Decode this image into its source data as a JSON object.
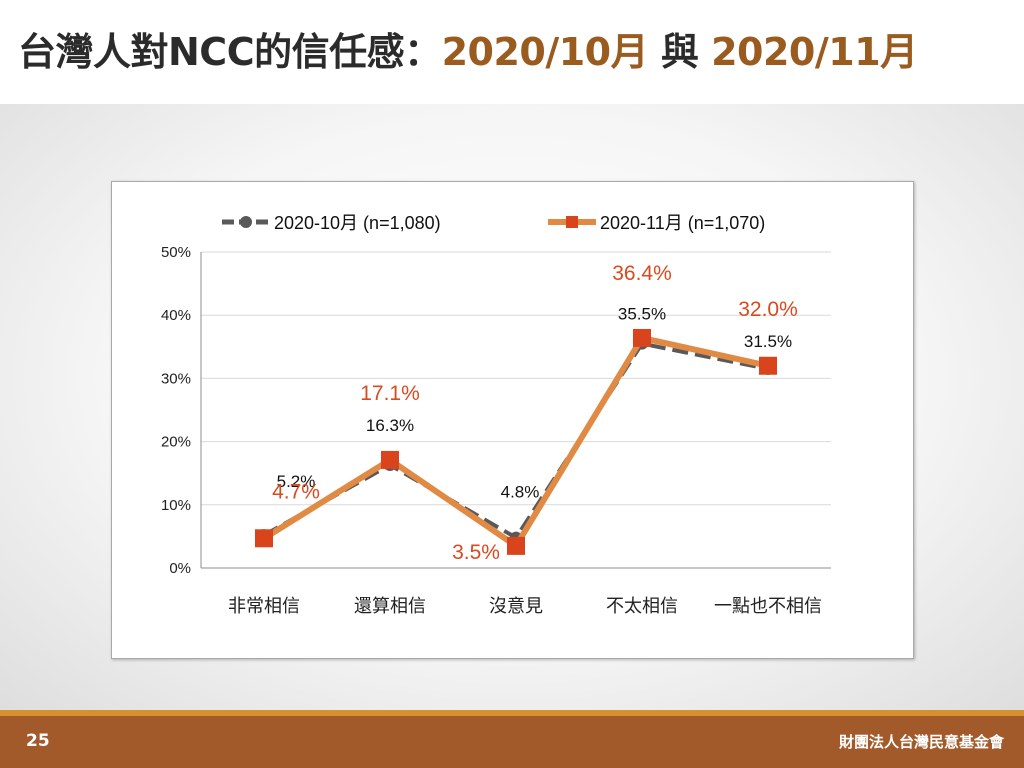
{
  "slide": {
    "title_main": "台灣人對NCC的信任感：",
    "title_date_1": "2020/10月",
    "title_join": "與",
    "title_date_2": "2020/11月",
    "page_number": "25",
    "org_name": "財團法人台灣民意基金會"
  },
  "colors": {
    "title_text": "#2b2b2b",
    "title_accent": "#9a5b1f",
    "series_oct": "#595959",
    "series_nov": "#e08a44",
    "series_nov_marker": "#d9441c",
    "nov_label": "#d84a1f",
    "footer": "#a35a2a",
    "footer_accent": "#d3922f"
  },
  "chart_data": {
    "type": "line",
    "title": "",
    "xlabel": "",
    "ylabel": "",
    "ylim": [
      0,
      50
    ],
    "y_ticks": [
      0,
      10,
      20,
      30,
      40,
      50
    ],
    "y_tick_labels": [
      "0%",
      "10%",
      "20%",
      "30%",
      "40%",
      "50%"
    ],
    "grid": true,
    "legend_position": "top",
    "categories": [
      "非常相信",
      "還算相信",
      "沒意見",
      "不太相信",
      "一點也不相信"
    ],
    "series": [
      {
        "name": "2020-10月  (n=1,080)",
        "style": "dashed",
        "marker": "circle",
        "values": [
          5.2,
          16.3,
          4.8,
          35.5,
          31.5
        ],
        "labels": [
          "5.2%",
          "16.3%",
          "4.8%",
          "35.5%",
          "31.5%"
        ]
      },
      {
        "name": "2020-11月  (n=1,070)",
        "style": "solid",
        "marker": "square",
        "values": [
          4.7,
          17.1,
          3.5,
          36.4,
          32.0
        ],
        "labels": [
          "4.7%",
          "17.1%",
          "3.5%",
          "36.4%",
          "32.0%"
        ]
      }
    ]
  }
}
